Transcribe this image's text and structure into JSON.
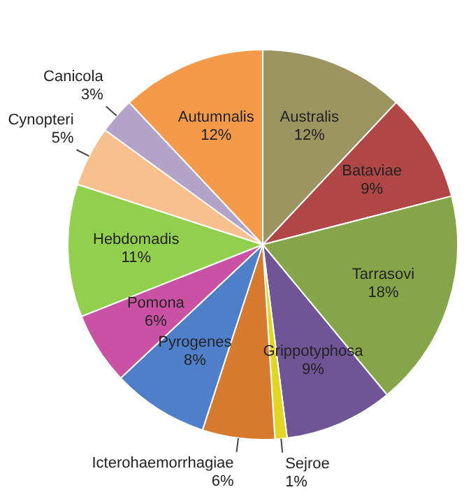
{
  "chart_data": {
    "type": "pie",
    "categories": [
      "Australis",
      "Bataviae",
      "Tarrasovi",
      "Grippotyphosa",
      "Sejroe",
      "Icterohaemorrhagiae",
      "Pyrogenes",
      "Pomona",
      "Hebdomadis",
      "Cynopteri",
      "Canicola",
      "Autumnalis"
    ],
    "values": [
      12,
      9,
      18,
      9,
      1,
      6,
      8,
      6,
      11,
      5,
      3,
      12
    ],
    "value_labels": [
      "12%",
      "9%",
      "18%",
      "9%",
      "1%",
      "6%",
      "8%",
      "6%",
      "11%",
      "5%",
      "3%",
      "12%"
    ],
    "colors": [
      "#9c9461",
      "#b04646",
      "#86a548",
      "#6f5496",
      "#e3d524",
      "#d67a30",
      "#4f7fc8",
      "#c952a4",
      "#92cf4f",
      "#f9c08f",
      "#b3a3c8",
      "#f59a4a"
    ],
    "legend": false
  }
}
